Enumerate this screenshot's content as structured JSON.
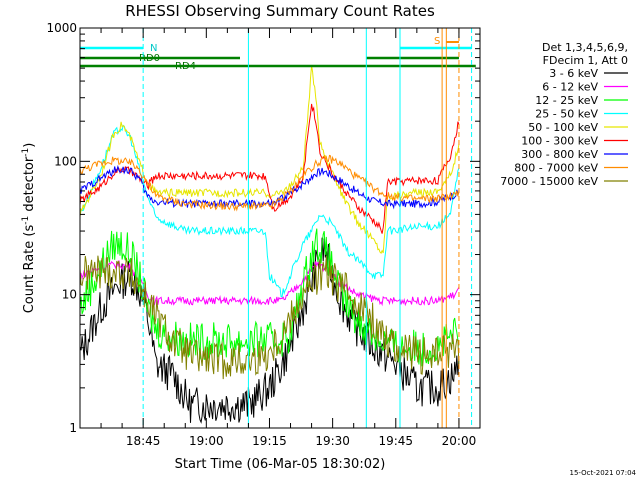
{
  "chart_data": {
    "type": "line",
    "title": "RHESSI Observing Summary Count Rates",
    "xlabel": "Start Time (06-Mar-05 18:30:02)",
    "ylabel_main": "Count Rate (s",
    "ylabel_sup1": "-1",
    "ylabel_mid": " detector",
    "ylabel_sup2": "-1",
    "ylabel_end": ")",
    "y_scale": "log",
    "ylim": [
      1,
      1000
    ],
    "xlim_minutes_after_1830": [
      0,
      95
    ],
    "y_ticks": [
      {
        "value": 1,
        "label": "1"
      },
      {
        "value": 10,
        "label": "10"
      },
      {
        "value": 100,
        "label": "100"
      },
      {
        "value": 1000,
        "label": "1000"
      }
    ],
    "x_ticks": [
      {
        "minute": 15,
        "label": "18:45"
      },
      {
        "minute": 30,
        "label": "19:00"
      },
      {
        "minute": 45,
        "label": "19:15"
      },
      {
        "minute": 60,
        "label": "19:30"
      },
      {
        "minute": 75,
        "label": "19:45"
      },
      {
        "minute": 90,
        "label": "20:00"
      }
    ],
    "legend_header": [
      "Det 1,3,4,5,6,9,",
      "FDecim 1, Att 0"
    ],
    "legend_position": "right",
    "timestamp": "15-Oct-2021 07:04",
    "flag_labels": {
      "n": "N",
      "s": "S",
      "rd0": "RD0",
      "rd4": "RD4"
    },
    "series": [
      {
        "name": "3 - 6 keV",
        "color": "#000000",
        "points": [
          [
            0,
            3.5
          ],
          [
            5,
            8
          ],
          [
            9,
            12
          ],
          [
            12,
            14
          ],
          [
            14,
            11
          ],
          [
            16,
            7
          ],
          [
            18,
            3
          ],
          [
            22,
            2.5
          ],
          [
            26,
            1.5
          ],
          [
            32,
            1.5
          ],
          [
            40,
            1.5
          ],
          [
            45,
            2
          ],
          [
            48,
            3
          ],
          [
            51,
            5
          ],
          [
            54,
            10
          ],
          [
            56,
            16
          ],
          [
            58,
            22
          ],
          [
            60,
            14
          ],
          [
            62,
            9
          ],
          [
            65,
            6
          ],
          [
            70,
            4
          ],
          [
            75,
            3
          ],
          [
            80,
            2
          ],
          [
            85,
            2
          ],
          [
            89,
            2.5
          ],
          [
            90,
            3.5
          ]
        ]
      },
      {
        "name": "6 - 12 keV",
        "color": "#ff00ff",
        "points": [
          [
            0,
            14
          ],
          [
            5,
            16
          ],
          [
            9,
            17
          ],
          [
            12,
            16
          ],
          [
            14,
            13
          ],
          [
            16,
            10
          ],
          [
            18,
            9
          ],
          [
            25,
            9
          ],
          [
            35,
            9
          ],
          [
            45,
            9
          ],
          [
            48,
            9
          ],
          [
            51,
            11
          ],
          [
            54,
            14
          ],
          [
            56,
            17
          ],
          [
            58,
            16
          ],
          [
            60,
            14
          ],
          [
            62,
            12
          ],
          [
            66,
            10
          ],
          [
            72,
            9
          ],
          [
            80,
            9
          ],
          [
            85,
            9
          ],
          [
            89,
            10
          ],
          [
            90,
            11
          ]
        ]
      },
      {
        "name": "12 - 25 keV",
        "color": "#00ff00",
        "points": [
          [
            0,
            8
          ],
          [
            5,
            16
          ],
          [
            8,
            24
          ],
          [
            10,
            24
          ],
          [
            12,
            20
          ],
          [
            14,
            14
          ],
          [
            16,
            8
          ],
          [
            18,
            5.5
          ],
          [
            25,
            4.5
          ],
          [
            35,
            4.5
          ],
          [
            44,
            4.5
          ],
          [
            46,
            4.5
          ],
          [
            50,
            5
          ],
          [
            53,
            12
          ],
          [
            55,
            20
          ],
          [
            56,
            25
          ],
          [
            58,
            22
          ],
          [
            60,
            16
          ],
          [
            62,
            10
          ],
          [
            65,
            7
          ],
          [
            70,
            5
          ],
          [
            75,
            4
          ],
          [
            80,
            4
          ],
          [
            85,
            4
          ],
          [
            89,
            5
          ],
          [
            90,
            5.5
          ]
        ]
      },
      {
        "name": "25 - 50 keV",
        "color": "#00ffff",
        "points": [
          [
            0,
            40
          ],
          [
            5,
            90
          ],
          [
            8,
            160
          ],
          [
            10,
            180
          ],
          [
            12,
            150
          ],
          [
            14,
            90
          ],
          [
            16,
            55
          ],
          [
            18,
            38
          ],
          [
            25,
            30
          ],
          [
            35,
            30
          ],
          [
            44,
            30
          ],
          [
            45,
            14
          ],
          [
            48,
            10
          ],
          [
            50,
            14
          ],
          [
            53,
            24
          ],
          [
            55,
            30
          ],
          [
            57,
            40
          ],
          [
            59,
            36
          ],
          [
            61,
            30
          ],
          [
            63,
            22
          ],
          [
            66,
            18
          ],
          [
            70,
            14
          ],
          [
            72,
            14
          ],
          [
            73,
            30
          ],
          [
            80,
            32
          ],
          [
            85,
            33
          ],
          [
            88,
            40
          ],
          [
            90,
            90
          ]
        ]
      },
      {
        "name": "50 - 100 keV",
        "color": "#e6e600",
        "points": [
          [
            0,
            40
          ],
          [
            5,
            80
          ],
          [
            8,
            160
          ],
          [
            10,
            190
          ],
          [
            12,
            150
          ],
          [
            14,
            100
          ],
          [
            16,
            70
          ],
          [
            18,
            58
          ],
          [
            25,
            58
          ],
          [
            35,
            58
          ],
          [
            44,
            58
          ],
          [
            46,
            55
          ],
          [
            50,
            65
          ],
          [
            53,
            90
          ],
          [
            54,
            200
          ],
          [
            55,
            500
          ],
          [
            56,
            300
          ],
          [
            57,
            140
          ],
          [
            60,
            80
          ],
          [
            63,
            50
          ],
          [
            66,
            35
          ],
          [
            70,
            25
          ],
          [
            72,
            20
          ],
          [
            73,
            55
          ],
          [
            80,
            58
          ],
          [
            85,
            60
          ],
          [
            88,
            80
          ],
          [
            90,
            130
          ]
        ]
      },
      {
        "name": "100 - 300 keV",
        "color": "#ff0000",
        "points": [
          [
            0,
            50
          ],
          [
            5,
            65
          ],
          [
            8,
            82
          ],
          [
            10,
            88
          ],
          [
            12,
            84
          ],
          [
            14,
            75
          ],
          [
            16,
            65
          ],
          [
            18,
            78
          ],
          [
            25,
            78
          ],
          [
            35,
            78
          ],
          [
            44,
            78
          ],
          [
            46,
            44
          ],
          [
            50,
            55
          ],
          [
            53,
            75
          ],
          [
            54,
            150
          ],
          [
            55,
            280
          ],
          [
            56,
            200
          ],
          [
            57,
            120
          ],
          [
            60,
            80
          ],
          [
            63,
            60
          ],
          [
            66,
            45
          ],
          [
            70,
            35
          ],
          [
            72,
            30
          ],
          [
            73,
            70
          ],
          [
            80,
            72
          ],
          [
            85,
            72
          ],
          [
            88,
            110
          ],
          [
            90,
            200
          ]
        ]
      },
      {
        "name": "300 - 800 keV",
        "color": "#0000ff",
        "points": [
          [
            0,
            60
          ],
          [
            5,
            75
          ],
          [
            8,
            85
          ],
          [
            10,
            88
          ],
          [
            12,
            84
          ],
          [
            14,
            75
          ],
          [
            16,
            55
          ],
          [
            18,
            50
          ],
          [
            25,
            48
          ],
          [
            35,
            48
          ],
          [
            44,
            48
          ],
          [
            46,
            48
          ],
          [
            50,
            58
          ],
          [
            54,
            72
          ],
          [
            56,
            82
          ],
          [
            58,
            85
          ],
          [
            60,
            78
          ],
          [
            63,
            68
          ],
          [
            66,
            58
          ],
          [
            70,
            50
          ],
          [
            73,
            48
          ],
          [
            80,
            48
          ],
          [
            85,
            50
          ],
          [
            88,
            55
          ],
          [
            90,
            58
          ]
        ]
      },
      {
        "name": "800 - 7000 keV",
        "color": "#ff8c00",
        "points": [
          [
            0,
            85
          ],
          [
            5,
            97
          ],
          [
            8,
            102
          ],
          [
            10,
            100
          ],
          [
            12,
            97
          ],
          [
            14,
            88
          ],
          [
            16,
            70
          ],
          [
            18,
            55
          ],
          [
            25,
            48
          ],
          [
            35,
            46
          ],
          [
            44,
            46
          ],
          [
            46,
            47
          ],
          [
            50,
            60
          ],
          [
            54,
            85
          ],
          [
            57,
            100
          ],
          [
            59,
            105
          ],
          [
            61,
            100
          ],
          [
            63,
            90
          ],
          [
            66,
            75
          ],
          [
            70,
            62
          ],
          [
            73,
            55
          ],
          [
            80,
            52
          ],
          [
            85,
            53
          ],
          [
            88,
            55
          ],
          [
            90,
            58
          ]
        ]
      },
      {
        "name": "7000 - 15000 keV",
        "color": "#808000",
        "points": [
          [
            0,
            14
          ],
          [
            5,
            15
          ],
          [
            8,
            15
          ],
          [
            10,
            15
          ],
          [
            12,
            14
          ],
          [
            14,
            12
          ],
          [
            16,
            9
          ],
          [
            18,
            7
          ],
          [
            22,
            4.5
          ],
          [
            26,
            3.5
          ],
          [
            32,
            3.2
          ],
          [
            40,
            3.2
          ],
          [
            44,
            3.5
          ],
          [
            48,
            5
          ],
          [
            52,
            9
          ],
          [
            56,
            13
          ],
          [
            58,
            15
          ],
          [
            60,
            13
          ],
          [
            63,
            11
          ],
          [
            66,
            9
          ],
          [
            70,
            6
          ],
          [
            75,
            4
          ],
          [
            80,
            3.5
          ],
          [
            85,
            3.5
          ],
          [
            89,
            4
          ],
          [
            90,
            4
          ]
        ]
      }
    ]
  }
}
